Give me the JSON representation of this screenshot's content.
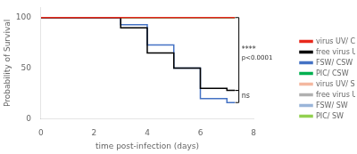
{
  "chart_data": {
    "type": "line",
    "xlabel": "time post-infection (days)",
    "ylabel": "Probability of Survival",
    "xlim": [
      0,
      8
    ],
    "ylim": [
      0,
      110
    ],
    "xticks": [
      0,
      2,
      4,
      6,
      8
    ],
    "yticks": [
      0,
      50,
      100
    ],
    "grid": false,
    "legend": "right",
    "series": [
      {
        "name": "virus UV/ CSW",
        "color": "#e8291c",
        "x": [
          0,
          7.3
        ],
        "values": [
          100,
          100
        ]
      },
      {
        "name": "free virus UV/ CSW",
        "color": "#000000",
        "x": [
          0,
          3,
          3,
          4,
          4,
          5,
          5,
          6,
          6,
          7,
          7,
          7.3
        ],
        "values": [
          100,
          100,
          90,
          90,
          65,
          65,
          50,
          50,
          30,
          30,
          28,
          28
        ]
      },
      {
        "name": "FSW/ CSW",
        "color": "#4472c4",
        "x": [
          0,
          3,
          3,
          4,
          4,
          5,
          5,
          6,
          6,
          7,
          7,
          7.3
        ],
        "values": [
          100,
          100,
          93,
          93,
          73,
          73,
          50,
          50,
          20,
          20,
          16,
          16
        ]
      },
      {
        "name": "PIC/ CSW",
        "color": "#00b050",
        "x": [
          0,
          7,
          7,
          7.3
        ],
        "values": [
          100,
          100,
          100,
          100
        ]
      },
      {
        "name": "virus UV/ SW",
        "color": "#f4b8a0",
        "x": [
          0,
          7.3
        ],
        "values": [
          100,
          100
        ]
      },
      {
        "name": "free virus UV/ SW",
        "color": "#b0b0b0",
        "x": [
          0,
          7.3
        ],
        "values": [
          100,
          100
        ]
      },
      {
        "name": "FSW/ SW",
        "color": "#9ab5d9",
        "x": [
          0,
          7.3
        ],
        "values": [
          100,
          100
        ]
      },
      {
        "name": "PIC/ SW",
        "color": "#92d050",
        "x": [
          0,
          7.3
        ],
        "values": [
          100,
          100
        ]
      }
    ],
    "annotations": [
      {
        "text": "****",
        "x": 7.45,
        "y": [
          100,
          28
        ]
      },
      {
        "text": "p<0.0001",
        "x": 7.45,
        "y": [
          100,
          28
        ]
      },
      {
        "text": "ns",
        "x": 7.45,
        "y": [
          28,
          16
        ]
      }
    ]
  }
}
